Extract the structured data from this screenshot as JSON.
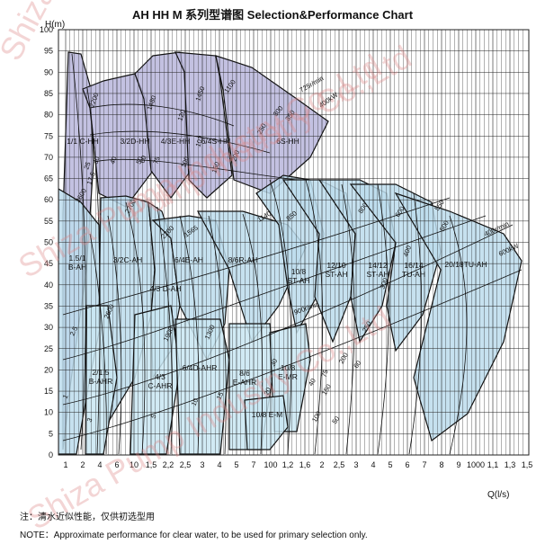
{
  "chart_data": {
    "type": "area",
    "title": "AH HH M 系列型谱图  Selection&Performance Chart",
    "ylabel": "H(m)",
    "xlabel": "Q(l/s)",
    "xscale": "log",
    "ylim": [
      0,
      100
    ],
    "y_ticks": [
      0,
      5,
      10,
      15,
      20,
      25,
      30,
      35,
      40,
      45,
      50,
      55,
      60,
      65,
      70,
      75,
      80,
      85,
      90,
      95,
      100
    ],
    "x_tick_labels": [
      "1",
      "2",
      "4",
      "6",
      "10",
      "1,5",
      "2,2",
      "2,5",
      "3",
      "4",
      "5",
      "7",
      "100",
      "1,2",
      "1,6",
      "2",
      "2,5",
      "3",
      "4",
      "5",
      "6",
      "7",
      "8",
      "9",
      "1000",
      "1,1",
      "1,3",
      "1,5"
    ],
    "grid": true,
    "regions": [
      {
        "name": "1/1 C-HH",
        "group": "HH"
      },
      {
        "name": "3/2D-HH",
        "group": "HH"
      },
      {
        "name": "4/3E-HH",
        "group": "HH"
      },
      {
        "name": "6/4S-HH",
        "group": "HH"
      },
      {
        "name": "6S-HH",
        "group": "HH"
      },
      {
        "name": "1.5/1 B-AH",
        "group": "AH"
      },
      {
        "name": "3/2C-AH",
        "group": "AH"
      },
      {
        "name": "4/3 D-AH",
        "group": "AH"
      },
      {
        "name": "6/4E-AH",
        "group": "AH"
      },
      {
        "name": "8/6R-AH",
        "group": "AH"
      },
      {
        "name": "10/8 ST-AH",
        "group": "AH"
      },
      {
        "name": "12/10 ST-AH",
        "group": "AH"
      },
      {
        "name": "14/12 ST-AH",
        "group": "AH"
      },
      {
        "name": "16/14 TU-AH",
        "group": "AH"
      },
      {
        "name": "20/18TU-AH",
        "group": "AH"
      },
      {
        "name": "2/1.5 B-AHR",
        "group": "AHR"
      },
      {
        "name": "4/3 C-AHR",
        "group": "AHR"
      },
      {
        "name": "6/4D-AHR",
        "group": "AHR"
      },
      {
        "name": "8/6 E-AHR",
        "group": "AHR"
      },
      {
        "name": "10/8 E-MR",
        "group": "AHR"
      },
      {
        "name": "10/8 E-M",
        "group": "AHR"
      }
    ],
    "speed_labels": {
      "hh": [
        "2200",
        "1480",
        "1450",
        "1100",
        "725r/min",
        "400kW",
        "300",
        "350",
        "250",
        "200",
        "150",
        "100",
        "75",
        "60",
        "50",
        "40",
        "30",
        "25",
        "17.5",
        "120",
        "102"
      ],
      "ah": [
        "3600",
        "2700",
        "2200",
        "1565",
        "1140",
        "850",
        "800",
        "600",
        "550",
        "400r/min",
        "600kW",
        "500",
        "400",
        "300",
        "250",
        "200",
        "150",
        "100",
        "75",
        "60",
        "50",
        "40",
        "30",
        "20",
        "15",
        "10",
        "5",
        "3",
        "2.5",
        "1",
        "900r/min",
        "1900",
        "1300",
        "2600"
      ]
    },
    "colors": {
      "hh": "#b9b6dc",
      "ah": "#bcdcec",
      "ahr": "#c9e6f2",
      "grid": "#222222",
      "curve": "#111111",
      "watermark": "#d88888"
    }
  },
  "watermark": "Shiza Pump Industry Co.,Ltd",
  "notes": {
    "zh": "注：清水近似性能，仅供初选型用",
    "en": "NOTE：Approximate performance for clear water, to be used for primary selection only."
  }
}
